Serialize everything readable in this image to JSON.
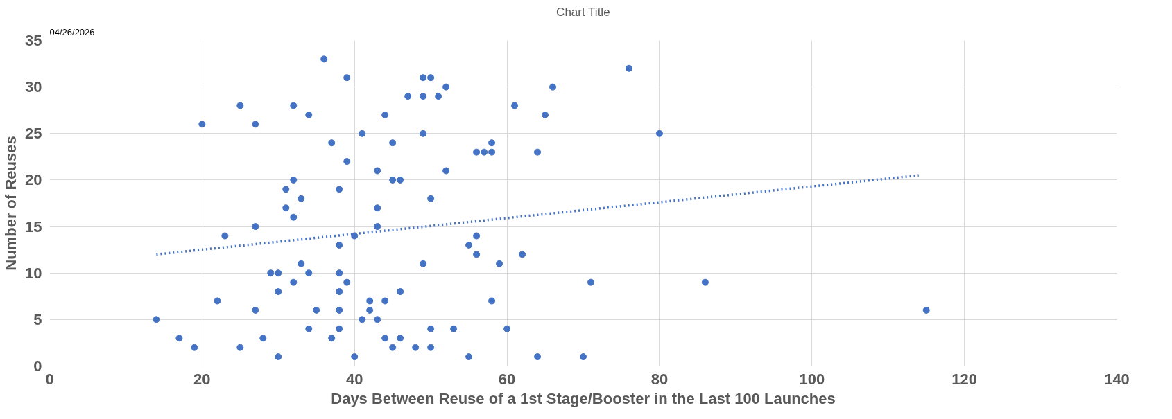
{
  "chart_data": {
    "type": "scatter",
    "title": "Chart Title",
    "xlabel": "Days Between Reuse of a 1st Stage/Booster in the Last 100 Launches",
    "ylabel": "Number of Reuses",
    "annotations": [
      "04/26/2026"
    ],
    "xlim": [
      0,
      140
    ],
    "ylim": [
      0,
      35
    ],
    "xticks": [
      0,
      20,
      40,
      60,
      80,
      100,
      120,
      140
    ],
    "yticks": [
      0,
      5,
      10,
      15,
      20,
      25,
      30,
      35
    ],
    "grid": true,
    "series": [
      {
        "marker": "circle",
        "color": "#4472c4",
        "x": [
          14,
          17,
          19,
          20,
          22,
          23,
          25,
          25,
          27,
          27,
          27,
          28,
          29,
          30,
          30,
          30,
          31,
          31,
          32,
          32,
          32,
          32,
          33,
          33,
          34,
          34,
          34,
          35,
          36,
          37,
          37,
          38,
          38,
          38,
          38,
          38,
          38,
          39,
          39,
          39,
          40,
          40,
          41,
          41,
          42,
          42,
          43,
          43,
          43,
          43,
          44,
          44,
          44,
          45,
          45,
          45,
          46,
          46,
          46,
          47,
          48,
          49,
          49,
          49,
          49,
          50,
          50,
          50,
          50,
          51,
          52,
          52,
          53,
          55,
          55,
          56,
          56,
          56,
          57,
          58,
          58,
          58,
          59,
          60,
          61,
          62,
          64,
          64,
          65,
          66,
          70,
          71,
          76,
          80,
          86,
          115
        ],
        "values": [
          5,
          3,
          2,
          26,
          7,
          14,
          28,
          2,
          26,
          15,
          6,
          3,
          10,
          10,
          8,
          1,
          19,
          17,
          28,
          20,
          16,
          9,
          18,
          11,
          27,
          10,
          4,
          6,
          33,
          24,
          3,
          19,
          13,
          10,
          8,
          6,
          4,
          31,
          22,
          9,
          14,
          1,
          25,
          5,
          7,
          6,
          21,
          17,
          15,
          5,
          27,
          7,
          3,
          24,
          20,
          2,
          20,
          8,
          3,
          29,
          2,
          31,
          29,
          25,
          11,
          31,
          18,
          4,
          2,
          29,
          30,
          21,
          4,
          13,
          1,
          23,
          14,
          12,
          23,
          24,
          23,
          7,
          11,
          4,
          28,
          12,
          23,
          1,
          27,
          30,
          1,
          9,
          32,
          25,
          9,
          6
        ]
      },
      {
        "type": "line",
        "line_style": "dotted",
        "marker": "none",
        "color": "#4472c4",
        "x": [
          14,
          114
        ],
        "values": [
          12,
          20.5
        ]
      }
    ]
  }
}
